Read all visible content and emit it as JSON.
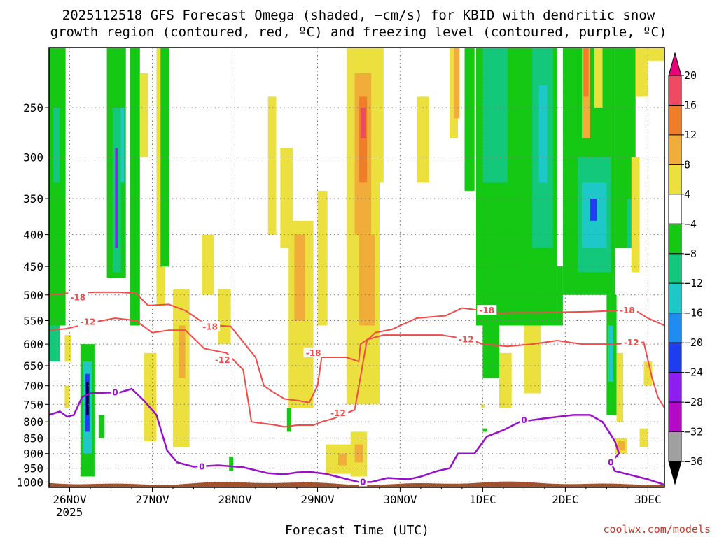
{
  "chart_data": {
    "type": "heatmap",
    "title": "2025112518 GFS Forecast Omega (shaded, −cm/s) for KBID with dendritic snow growth region (contoured, red, ºC) and freezing level (contoured, purple, ºC)",
    "title_lines": [
      "2025112518 GFS Forecast Omega (shaded, −cm/s) for KBID with dendritic snow",
      "growth region (contoured, red, ºC) and freezing level (contoured, purple, ºC)"
    ],
    "xlabel": "Forecast Time (UTC)",
    "x_ticks": [
      {
        "label": "26NOV",
        "day": 0
      },
      {
        "label": "27NOV",
        "day": 1
      },
      {
        "label": "28NOV",
        "day": 2
      },
      {
        "label": "29NOV",
        "day": 3
      },
      {
        "label": "30NOV",
        "day": 4
      },
      {
        "label": "1DEC",
        "day": 5
      },
      {
        "label": "2DEC",
        "day": 6
      },
      {
        "label": "3DEC",
        "day": 7
      }
    ],
    "x_sublabel": "2025",
    "xlim_days": [
      -0.25,
      7.2
    ],
    "y_ticks": [
      250,
      300,
      350,
      400,
      450,
      500,
      550,
      600,
      650,
      700,
      750,
      800,
      850,
      900,
      950,
      1000
    ],
    "ylim_hpa": [
      200,
      1020
    ],
    "colorbar": {
      "labels": [
        "20",
        "16",
        "12",
        "8",
        "4",
        "−4",
        "−8",
        "−12",
        "−16",
        "−20",
        "−24",
        "−28",
        "−32",
        "−36"
      ],
      "colors": [
        "#f04a62",
        "#f07d2a",
        "#f0ad3a",
        "#ece03e",
        "#ffffff",
        "#14c814",
        "#13c87a",
        "#1ec8c8",
        "#1e8cf0",
        "#1e3cf0",
        "#8c1ef0",
        "#b40ac8",
        "#a0a0a0"
      ],
      "top_arrow": "#e6007a",
      "bottom_arrow": "#000000"
    },
    "colors": {
      "terrain": "#a0522d",
      "dgz": "#f24b4b",
      "freezing": "#9a10c8",
      "grid": "#777777"
    },
    "omega_regions": [
      {
        "d0": -0.25,
        "d1": -0.05,
        "p0": 200,
        "p1": 560,
        "v": -6
      },
      {
        "d0": -0.2,
        "d1": -0.12,
        "p0": 250,
        "p1": 330,
        "v": -10
      },
      {
        "d0": -0.25,
        "d1": -0.12,
        "p0": 560,
        "p1": 640,
        "v": -8
      },
      {
        "d0": -0.06,
        "d1": 0.02,
        "p0": 580,
        "p1": 640,
        "v": 6
      },
      {
        "d0": -0.06,
        "d1": 0.0,
        "p0": 700,
        "p1": 760,
        "v": 6
      },
      {
        "d0": 0.13,
        "d1": 0.3,
        "p0": 600,
        "p1": 980,
        "v": -6
      },
      {
        "d0": 0.16,
        "d1": 0.27,
        "p0": 640,
        "p1": 900,
        "v": -12
      },
      {
        "d0": 0.19,
        "d1": 0.24,
        "p0": 670,
        "p1": 830,
        "v": -22
      },
      {
        "d0": 0.2,
        "d1": 0.23,
        "p0": 690,
        "p1": 780,
        "v": -36
      },
      {
        "d0": 0.35,
        "d1": 0.42,
        "p0": 780,
        "p1": 850,
        "v": -6
      },
      {
        "d0": 0.45,
        "d1": 0.68,
        "p0": 200,
        "p1": 470,
        "v": -6
      },
      {
        "d0": 0.52,
        "d1": 0.62,
        "p0": 250,
        "p1": 460,
        "v": -10
      },
      {
        "d0": 0.55,
        "d1": 0.58,
        "p0": 290,
        "p1": 420,
        "v": -26
      },
      {
        "d0": 0.62,
        "d1": 0.66,
        "p0": 250,
        "p1": 330,
        "v": -14
      },
      {
        "d0": 0.73,
        "d1": 0.85,
        "p0": 200,
        "p1": 560,
        "v": -6
      },
      {
        "d0": 0.85,
        "d1": 0.95,
        "p0": 220,
        "p1": 300,
        "v": 6
      },
      {
        "d0": 0.9,
        "d1": 1.05,
        "p0": 620,
        "p1": 860,
        "v": 6
      },
      {
        "d0": 1.05,
        "d1": 1.15,
        "p0": 200,
        "p1": 520,
        "v": 6
      },
      {
        "d0": 1.1,
        "d1": 1.2,
        "p0": 200,
        "p1": 450,
        "v": -6
      },
      {
        "d0": 1.25,
        "d1": 1.45,
        "p0": 490,
        "p1": 880,
        "v": 6
      },
      {
        "d0": 1.32,
        "d1": 1.4,
        "p0": 560,
        "p1": 680,
        "v": 10
      },
      {
        "d0": 1.6,
        "d1": 1.75,
        "p0": 400,
        "p1": 500,
        "v": 6
      },
      {
        "d0": 1.8,
        "d1": 1.95,
        "p0": 490,
        "p1": 600,
        "v": 6
      },
      {
        "d0": 1.93,
        "d1": 1.98,
        "p0": 910,
        "p1": 960,
        "v": -6
      },
      {
        "d0": 2.4,
        "d1": 2.5,
        "p0": 240,
        "p1": 400,
        "v": 6
      },
      {
        "d0": 2.55,
        "d1": 2.7,
        "p0": 290,
        "p1": 420,
        "v": 6
      },
      {
        "d0": 2.65,
        "d1": 2.95,
        "p0": 380,
        "p1": 760,
        "v": 6
      },
      {
        "d0": 2.72,
        "d1": 2.85,
        "p0": 400,
        "p1": 550,
        "v": 10
      },
      {
        "d0": 2.63,
        "d1": 2.68,
        "p0": 760,
        "p1": 830,
        "v": -6
      },
      {
        "d0": 3.0,
        "d1": 3.12,
        "p0": 340,
        "p1": 560,
        "v": 6
      },
      {
        "d0": 3.1,
        "d1": 3.45,
        "p0": 870,
        "p1": 970,
        "v": 6
      },
      {
        "d0": 3.25,
        "d1": 3.35,
        "p0": 900,
        "p1": 940,
        "v": 10
      },
      {
        "d0": 3.35,
        "d1": 3.75,
        "p0": 200,
        "p1": 750,
        "v": 6
      },
      {
        "d0": 3.45,
        "d1": 3.65,
        "p0": 220,
        "p1": 400,
        "v": 10
      },
      {
        "d0": 3.5,
        "d1": 3.6,
        "p0": 240,
        "p1": 330,
        "v": 14
      },
      {
        "d0": 3.52,
        "d1": 3.58,
        "p0": 250,
        "p1": 280,
        "v": 18
      },
      {
        "d0": 3.5,
        "d1": 3.7,
        "p0": 400,
        "p1": 560,
        "v": 10
      },
      {
        "d0": 3.4,
        "d1": 3.6,
        "p0": 830,
        "p1": 980,
        "v": 6
      },
      {
        "d0": 3.45,
        "d1": 3.55,
        "p0": 870,
        "p1": 930,
        "v": 10
      },
      {
        "d0": 3.7,
        "d1": 3.8,
        "p0": 200,
        "p1": 330,
        "v": 6
      },
      {
        "d0": 4.2,
        "d1": 4.35,
        "p0": 240,
        "p1": 330,
        "v": 6
      },
      {
        "d0": 4.6,
        "d1": 4.7,
        "p0": 200,
        "p1": 280,
        "v": 6
      },
      {
        "d0": 4.65,
        "d1": 4.72,
        "p0": 200,
        "p1": 260,
        "v": 10
      },
      {
        "d0": 4.78,
        "d1": 4.9,
        "p0": 200,
        "p1": 340,
        "v": -6
      },
      {
        "d0": 4.92,
        "d1": 5.9,
        "p0": 200,
        "p1": 560,
        "v": -6
      },
      {
        "d0": 5.0,
        "d1": 5.3,
        "p0": 200,
        "p1": 330,
        "v": -10
      },
      {
        "d0": 5.3,
        "d1": 5.55,
        "p0": 300,
        "p1": 520,
        "v": -6
      },
      {
        "d0": 5.6,
        "d1": 5.85,
        "p0": 200,
        "p1": 420,
        "v": -10
      },
      {
        "d0": 5.68,
        "d1": 5.78,
        "p0": 230,
        "p1": 330,
        "v": -14
      },
      {
        "d0": 5.0,
        "d1": 5.2,
        "p0": 560,
        "p1": 680,
        "v": -6
      },
      {
        "d0": 5.2,
        "d1": 5.35,
        "p0": 620,
        "p1": 760,
        "v": 6
      },
      {
        "d0": 5.5,
        "d1": 5.7,
        "p0": 560,
        "p1": 720,
        "v": 6
      },
      {
        "d0": 5.9,
        "d1": 5.97,
        "p0": 450,
        "p1": 560,
        "v": -6
      },
      {
        "d0": 5.97,
        "d1": 6.6,
        "p0": 200,
        "p1": 500,
        "v": -6
      },
      {
        "d0": 6.15,
        "d1": 6.55,
        "p0": 300,
        "p1": 460,
        "v": -10
      },
      {
        "d0": 6.2,
        "d1": 6.5,
        "p0": 330,
        "p1": 420,
        "v": -14
      },
      {
        "d0": 6.3,
        "d1": 6.38,
        "p0": 350,
        "p1": 380,
        "v": -22
      },
      {
        "d0": 6.2,
        "d1": 6.3,
        "p0": 200,
        "p1": 280,
        "v": 10
      },
      {
        "d0": 6.22,
        "d1": 6.28,
        "p0": 200,
        "p1": 240,
        "v": 14
      },
      {
        "d0": 6.35,
        "d1": 6.45,
        "p0": 200,
        "p1": 250,
        "v": 6
      },
      {
        "d0": 6.5,
        "d1": 6.62,
        "p0": 500,
        "p1": 780,
        "v": -6
      },
      {
        "d0": 6.52,
        "d1": 6.58,
        "p0": 560,
        "p1": 690,
        "v": -14
      },
      {
        "d0": 6.62,
        "d1": 6.7,
        "p0": 620,
        "p1": 800,
        "v": 6
      },
      {
        "d0": 6.6,
        "d1": 6.75,
        "p0": 850,
        "p1": 900,
        "v": 6
      },
      {
        "d0": 6.64,
        "d1": 6.72,
        "p0": 860,
        "p1": 890,
        "v": 10
      },
      {
        "d0": 6.6,
        "d1": 6.85,
        "p0": 200,
        "p1": 420,
        "v": -6
      },
      {
        "d0": 6.75,
        "d1": 6.82,
        "p0": 350,
        "p1": 420,
        "v": -10
      },
      {
        "d0": 6.8,
        "d1": 6.9,
        "p0": 300,
        "p1": 460,
        "v": 6
      },
      {
        "d0": 6.85,
        "d1": 7.0,
        "p0": 200,
        "p1": 240,
        "v": 6
      },
      {
        "d0": 6.95,
        "d1": 7.2,
        "p0": 200,
        "p1": 210,
        "v": 6
      },
      {
        "d0": 6.95,
        "d1": 7.05,
        "p0": 640,
        "p1": 700,
        "v": 6
      },
      {
        "d0": 6.9,
        "d1": 7.0,
        "p0": 820,
        "p1": 880,
        "v": 6
      },
      {
        "d0": 5.0,
        "d1": 5.05,
        "p0": 820,
        "p1": 830,
        "v": -6
      },
      {
        "d0": 4.98,
        "d1": 5.02,
        "p0": 750,
        "p1": 760,
        "v": 6
      }
    ],
    "dgz_minus18": [
      [
        -0.25,
        500
      ],
      [
        -0.05,
        497
      ],
      [
        0.3,
        495
      ],
      [
        0.6,
        495
      ],
      [
        0.8,
        497
      ],
      [
        0.95,
        520
      ],
      [
        1.2,
        518
      ],
      [
        1.4,
        530
      ],
      [
        1.65,
        558
      ],
      [
        1.95,
        562
      ],
      [
        2.25,
        630
      ],
      [
        2.35,
        700
      ],
      [
        2.45,
        715
      ],
      [
        2.6,
        735
      ],
      [
        2.78,
        740
      ],
      [
        2.9,
        745
      ],
      [
        3.0,
        700
      ],
      [
        3.05,
        630
      ],
      [
        3.2,
        630
      ],
      [
        3.35,
        630
      ],
      [
        3.5,
        640
      ],
      [
        3.52,
        600
      ],
      [
        3.62,
        588
      ],
      [
        3.7,
        575
      ],
      [
        3.9,
        568
      ],
      [
        4.2,
        545
      ],
      [
        4.55,
        540
      ],
      [
        4.75,
        525
      ],
      [
        5.0,
        530
      ],
      [
        5.2,
        535
      ],
      [
        5.4,
        534
      ],
      [
        5.7,
        534
      ],
      [
        6.0,
        533
      ],
      [
        6.3,
        532
      ],
      [
        6.6,
        530
      ],
      [
        6.85,
        530
      ],
      [
        7.0,
        545
      ],
      [
        7.2,
        560
      ]
    ],
    "dgz_minus12": [
      [
        -0.25,
        570
      ],
      [
        -0.05,
        567
      ],
      [
        0.3,
        553
      ],
      [
        0.55,
        545
      ],
      [
        0.8,
        550
      ],
      [
        1.0,
        575
      ],
      [
        1.2,
        570
      ],
      [
        1.4,
        570
      ],
      [
        1.63,
        610
      ],
      [
        1.9,
        620
      ],
      [
        2.1,
        660
      ],
      [
        2.2,
        800
      ],
      [
        2.35,
        805
      ],
      [
        2.5,
        810
      ],
      [
        2.6,
        815
      ],
      [
        2.75,
        810
      ],
      [
        2.95,
        810
      ],
      [
        3.05,
        800
      ],
      [
        3.2,
        790
      ],
      [
        3.35,
        775
      ],
      [
        3.45,
        765
      ],
      [
        3.6,
        590
      ],
      [
        3.8,
        580
      ],
      [
        3.95,
        580
      ],
      [
        4.2,
        580
      ],
      [
        4.5,
        580
      ],
      [
        4.85,
        590
      ],
      [
        5.0,
        600
      ],
      [
        5.3,
        605
      ],
      [
        5.6,
        600
      ],
      [
        5.9,
        592
      ],
      [
        6.2,
        600
      ],
      [
        6.4,
        600
      ],
      [
        6.6,
        600
      ],
      [
        6.95,
        596
      ],
      [
        7.05,
        680
      ],
      [
        7.12,
        730
      ],
      [
        7.2,
        760
      ]
    ],
    "freezing_zero": [
      [
        -0.25,
        780
      ],
      [
        -0.12,
        770
      ],
      [
        -0.03,
        785
      ],
      [
        0.05,
        780
      ],
      [
        0.15,
        730
      ],
      [
        0.25,
        720
      ],
      [
        0.45,
        718
      ],
      [
        0.6,
        718
      ],
      [
        0.75,
        708
      ],
      [
        0.9,
        740
      ],
      [
        1.05,
        780
      ],
      [
        1.18,
        890
      ],
      [
        1.3,
        930
      ],
      [
        1.5,
        945
      ],
      [
        1.8,
        940
      ],
      [
        2.1,
        947
      ],
      [
        2.4,
        968
      ],
      [
        2.6,
        972
      ],
      [
        2.75,
        965
      ],
      [
        2.9,
        963
      ],
      [
        3.1,
        970
      ],
      [
        3.3,
        985
      ],
      [
        3.5,
        1000
      ],
      [
        3.65,
        1000
      ],
      [
        3.85,
        985
      ],
      [
        4.1,
        990
      ],
      [
        4.25,
        980
      ],
      [
        4.45,
        960
      ],
      [
        4.6,
        950
      ],
      [
        4.7,
        900
      ],
      [
        4.9,
        900
      ],
      [
        5.05,
        845
      ],
      [
        5.25,
        825
      ],
      [
        5.45,
        800
      ],
      [
        5.75,
        790
      ],
      [
        6.1,
        780
      ],
      [
        6.3,
        780
      ],
      [
        6.45,
        800
      ],
      [
        6.6,
        860
      ],
      [
        6.65,
        900
      ],
      [
        6.55,
        930
      ],
      [
        6.6,
        960
      ],
      [
        6.8,
        975
      ],
      [
        7.0,
        990
      ],
      [
        7.2,
        1010
      ]
    ],
    "contour_labels": [
      {
        "text": "-18",
        "day": 0.1,
        "p": 505,
        "series": "dgz"
      },
      {
        "text": "-12",
        "day": 0.22,
        "p": 553,
        "series": "dgz"
      },
      {
        "text": "-18",
        "day": 1.7,
        "p": 563,
        "series": "dgz"
      },
      {
        "text": "-12",
        "day": 1.85,
        "p": 637,
        "series": "dgz"
      },
      {
        "text": "-18",
        "day": 2.95,
        "p": 620,
        "series": "dgz"
      },
      {
        "text": "-12",
        "day": 3.25,
        "p": 775,
        "series": "dgz"
      },
      {
        "text": "-18",
        "day": 5.05,
        "p": 530,
        "series": "dgz"
      },
      {
        "text": "-12",
        "day": 4.8,
        "p": 590,
        "series": "dgz"
      },
      {
        "text": "-18",
        "day": 6.75,
        "p": 530,
        "series": "dgz"
      },
      {
        "text": "-12",
        "day": 6.8,
        "p": 597,
        "series": "dgz"
      },
      {
        "text": "0",
        "day": 0.55,
        "p": 718,
        "series": "freezing"
      },
      {
        "text": "0",
        "day": 1.6,
        "p": 945,
        "series": "freezing"
      },
      {
        "text": "0",
        "day": 3.55,
        "p": 1000,
        "series": "freezing"
      },
      {
        "text": "0",
        "day": 5.5,
        "p": 795,
        "series": "freezing"
      },
      {
        "text": "0",
        "day": 6.55,
        "p": 930,
        "series": "freezing"
      }
    ]
  },
  "watermark": "coolwx.com/models"
}
